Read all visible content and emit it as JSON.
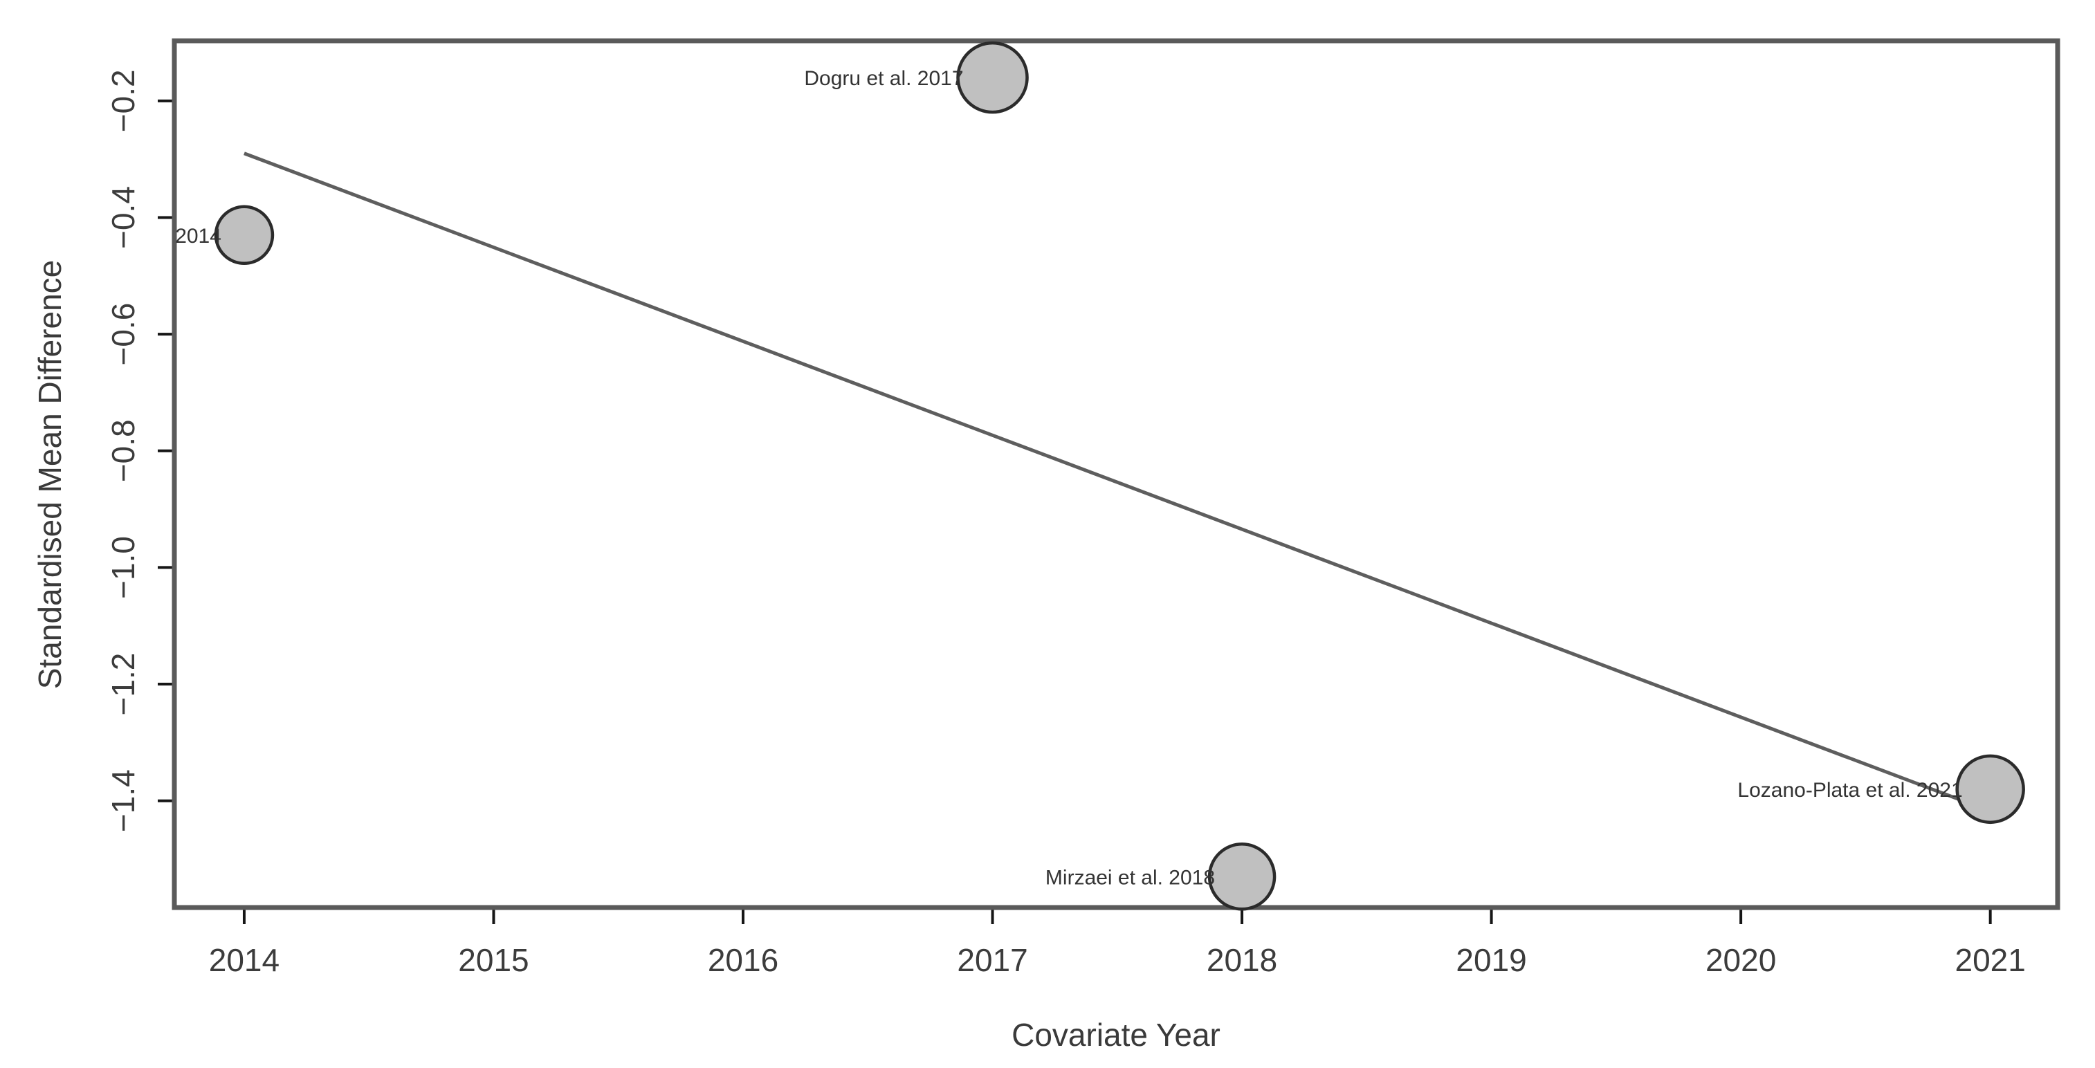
{
  "chart_data": {
    "type": "scatter",
    "subtype": "bubble-meta-regression",
    "title": "",
    "xlabel": "Covariate Year",
    "ylabel": "Standardised Mean Difference",
    "xlim": [
      2013.72,
      2021.27
    ],
    "ylim": [
      -1.583,
      -0.097
    ],
    "grid": false,
    "legend": null,
    "x_ticks": [
      {
        "value": 2014,
        "label": "2014"
      },
      {
        "value": 2015,
        "label": "2015"
      },
      {
        "value": 2016,
        "label": "2016"
      },
      {
        "value": 2017,
        "label": "2017"
      },
      {
        "value": 2018,
        "label": "2018"
      },
      {
        "value": 2019,
        "label": "2019"
      },
      {
        "value": 2020,
        "label": "2020"
      },
      {
        "value": 2021,
        "label": "2021"
      }
    ],
    "y_ticks": [
      {
        "value": -0.2,
        "label": "−0.2"
      },
      {
        "value": -0.4,
        "label": "−0.4"
      },
      {
        "value": -0.6,
        "label": "−0.6"
      },
      {
        "value": -0.8,
        "label": "−0.8"
      },
      {
        "value": -1.0,
        "label": "−1.0"
      },
      {
        "value": -1.2,
        "label": "−1.2"
      },
      {
        "value": -1.4,
        "label": "−1.4"
      }
    ],
    "points": [
      {
        "label": "2014",
        "x": 2014,
        "y": -0.43,
        "radius_px": 41
      },
      {
        "label": "Dogru et al. 2017",
        "x": 2017,
        "y": -0.16,
        "radius_px": 50
      },
      {
        "label": "Mirzaei et al. 2018",
        "x": 2018,
        "y": -1.53,
        "radius_px": 47
      },
      {
        "label": "Lozano-Plata et al. 2021",
        "x": 2021,
        "y": -1.38,
        "radius_px": 48
      }
    ],
    "regression_line": {
      "x1": 2014.0,
      "y1": -0.29,
      "x2": 2020.89,
      "y2": -1.4
    },
    "colors": {
      "bubble_fill": "#c0c0c0",
      "bubble_stroke": "#2b2b2b",
      "regression_line": "#5e5e5e",
      "plot_border": "#5a5a5a",
      "tick": "#161616",
      "text": "#3c3c3c"
    }
  }
}
